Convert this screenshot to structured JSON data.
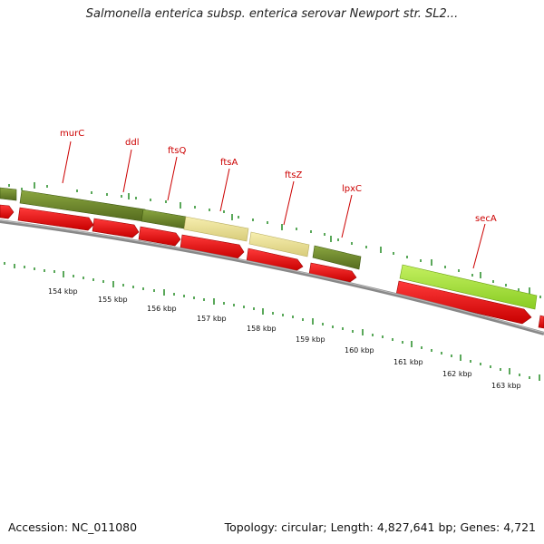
{
  "title": "Salmonella enterica subsp. enterica serovar Newport str. SL2...",
  "footer": {
    "accession": "Accession: NC_011080",
    "info": "Topology: circular; Length: 4,827,641 bp; Genes: 4,721"
  },
  "genes": [
    {
      "name": "murC"
    },
    {
      "name": "ddl"
    },
    {
      "name": "ftsQ"
    },
    {
      "name": "ftsA"
    },
    {
      "name": "ftsZ"
    },
    {
      "name": "lpxC"
    },
    {
      "name": "secA"
    }
  ],
  "ruler": {
    "labels": [
      "154 kbp",
      "155 kbp",
      "156 kbp",
      "157 kbp",
      "158 kbp",
      "159 kbp",
      "160 kbp",
      "161 kbp",
      "162 kbp",
      "163 kbp"
    ]
  },
  "colors": {
    "gene_label": "#cc0000",
    "cds_arrow": "#ee0000",
    "feature_dark_green": "#6b8e23",
    "feature_pale_yellow": "#f0e68c",
    "feature_lime": "#9acd32",
    "backbone": "#888888",
    "tick": "#228b22"
  }
}
